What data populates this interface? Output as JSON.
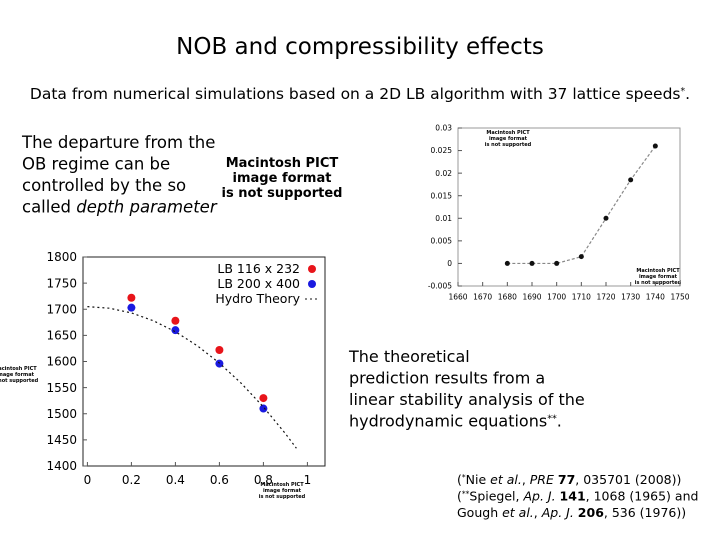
{
  "title": "NOB and compressibility effects",
  "subtitle": [
    {
      "text": "Data from numerical simulations based on a 2D LB algorithm with 37 lattice speeds"
    },
    {
      "text": "*",
      "style": "sup"
    },
    {
      "text": "."
    }
  ],
  "left_text": [
    [
      {
        "text": "The departure from the"
      }
    ],
    [
      {
        "text": "OB regime can be"
      }
    ],
    [
      {
        "text": "controlled by the so"
      }
    ],
    [
      {
        "text": "called "
      },
      {
        "text": "depth parameter",
        "style": "italic"
      }
    ]
  ],
  "right_text": [
    [
      {
        "text": "The theoretical"
      }
    ],
    [
      {
        "text": "prediction results from a"
      }
    ],
    [
      {
        "text": "linear stability analysis of the"
      }
    ],
    [
      {
        "text": "hydrodynamic equations"
      },
      {
        "text": "**",
        "style": "sup"
      },
      {
        "text": "."
      }
    ]
  ],
  "references": [
    [
      {
        "text": "("
      },
      {
        "text": "*",
        "style": "sup"
      },
      {
        "text": "Nie "
      },
      {
        "text": "et al.",
        "style": "italic"
      },
      {
        "text": ", "
      },
      {
        "text": "PRE",
        "style": "italic"
      },
      {
        "text": " "
      },
      {
        "text": "77",
        "style": "bold"
      },
      {
        "text": ", 035701 (2008))"
      }
    ],
    [
      {
        "text": "("
      },
      {
        "text": "**",
        "style": "sup"
      },
      {
        "text": "Spiegel, "
      },
      {
        "text": "Ap. J.",
        "style": "italic"
      },
      {
        "text": " "
      },
      {
        "text": "141",
        "style": "bold"
      },
      {
        "text": ", 1068 (1965) and"
      }
    ],
    [
      {
        "text": "Gough "
      },
      {
        "text": "et al.",
        "style": "italic"
      },
      {
        "text": ", "
      },
      {
        "text": "Ap. J.",
        "style": "italic"
      },
      {
        "text": " "
      },
      {
        "text": "206",
        "style": "bold"
      },
      {
        "text": ", 536 (1976))"
      }
    ]
  ],
  "placeholder": [
    "Macintosh PICT",
    "image format",
    "is not supported"
  ],
  "chart_data": [
    {
      "type": "line",
      "xlim": [
        1660,
        1750
      ],
      "xticks": [
        1660,
        1670,
        1680,
        1690,
        1700,
        1710,
        1720,
        1730,
        1740,
        1750
      ],
      "ylim": [
        -0.005,
        0.03
      ],
      "yticks": [
        -0.005,
        0,
        0.005,
        0.01,
        0.015,
        0.02,
        0.025,
        0.03
      ],
      "series": [
        {
          "color": "#111111",
          "x": [
            1680,
            1690,
            1700,
            1710,
            1720,
            1730,
            1740
          ],
          "values": [
            0,
            0,
            0,
            0.0015,
            0.01,
            0.0185,
            0.026
          ]
        }
      ]
    },
    {
      "type": "scatter",
      "xlim": [
        -0.02,
        1.08
      ],
      "xticks": [
        0,
        0.2,
        0.4,
        0.6,
        0.8,
        1
      ],
      "ylim": [
        1400,
        1800
      ],
      "yticks": [
        1400,
        1450,
        1500,
        1550,
        1600,
        1650,
        1700,
        1750,
        1800
      ],
      "legend": "upper right",
      "series": [
        {
          "name": "LB 116 x 232",
          "color": "#e8141a",
          "style": "points",
          "x": [
            0.2,
            0.4,
            0.6,
            0.8
          ],
          "values": [
            1722,
            1678,
            1622,
            1530
          ]
        },
        {
          "name": "LB 200 x 400",
          "color": "#1a1ae0",
          "style": "points",
          "x": [
            0.2,
            0.4,
            0.6,
            0.8
          ],
          "values": [
            1703,
            1660,
            1596,
            1510
          ]
        },
        {
          "name": "Hydro Theory",
          "color": "#111111",
          "style": "dashed",
          "x": [
            0,
            0.1,
            0.2,
            0.3,
            0.4,
            0.5,
            0.6,
            0.7,
            0.8,
            0.9,
            0.95
          ],
          "values": [
            1705,
            1702,
            1693,
            1678,
            1657,
            1630,
            1597,
            1558,
            1513,
            1462,
            1434
          ]
        }
      ]
    }
  ]
}
